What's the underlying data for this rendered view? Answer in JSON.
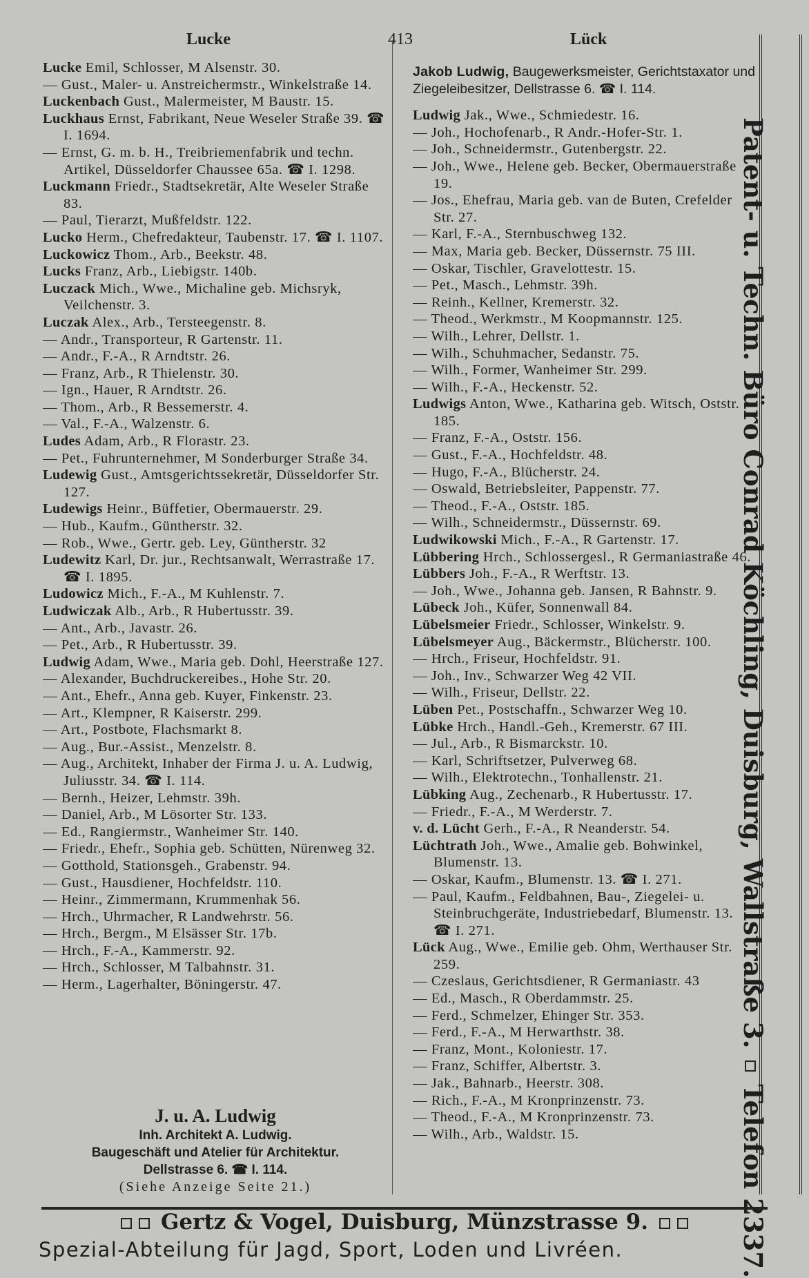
{
  "header": {
    "left": "Lucke",
    "page": "413",
    "right": "Lück"
  },
  "left_column": [
    {
      "name": "Lucke",
      "text": "Emil, Schlosser, M Alsenstr. 30."
    },
    {
      "text": "— Gust., Maler- u. Anstreichermstr., Winkelstraße 14."
    },
    {
      "name": "Luckenbach",
      "text": "Gust., Malermeister, M Baustr. 15."
    },
    {
      "name": "Luckhaus",
      "text": "Ernst, Fabrikant, Neue Weseler Straße 39. ☎ I. 1694."
    },
    {
      "text": "— Ernst, G. m. b. H., Treibriemenfabrik und techn. Artikel, Düsseldorfer Chaussee 65a. ☎ I. 1298."
    },
    {
      "name": "Luckmann",
      "text": "Friedr., Stadtsekretär, Alte Weseler Straße 83."
    },
    {
      "text": "— Paul, Tierarzt, Mußfeldstr. 122."
    },
    {
      "name": "Lucko",
      "text": "Herm., Chefredakteur, Taubenstr. 17. ☎ I. 1107."
    },
    {
      "name": "Luckowicz",
      "text": "Thom., Arb., Beekstr. 48."
    },
    {
      "name": "Lucks",
      "text": "Franz, Arb., Liebigstr. 140b."
    },
    {
      "name": "Luczack",
      "text": "Mich., Wwe., Michaline geb. Michsryk, Veilchenstr. 3."
    },
    {
      "name": "Luczak",
      "text": "Alex., Arb., Tersteegenstr. 8."
    },
    {
      "text": "— Andr., Transporteur, R Gartenstr. 11."
    },
    {
      "text": "— Andr., F.-A., R Arndtstr. 26."
    },
    {
      "text": "— Franz, Arb., R Thielenstr. 30."
    },
    {
      "text": "— Ign., Hauer, R Arndtstr. 26."
    },
    {
      "text": "— Thom., Arb., R Bessemerstr. 4."
    },
    {
      "text": "— Val., F.-A., Walzenstr. 6."
    },
    {
      "name": "Ludes",
      "text": "Adam, Arb., R Florastr. 23."
    },
    {
      "text": "— Pet., Fuhrunternehmer, M Sonderburger Straße 34."
    },
    {
      "name": "Ludewig",
      "text": "Gust., Amtsgerichtssekretär, Düsseldorfer Str. 127."
    },
    {
      "name": "Ludewigs",
      "text": "Heinr., Büffetier, Obermauerstr. 29."
    },
    {
      "text": "— Hub., Kaufm., Güntherstr. 32."
    },
    {
      "text": "— Rob., Wwe., Gertr. geb. Ley, Güntherstr. 32"
    },
    {
      "name": "Ludewitz",
      "text": "Karl, Dr. jur., Rechtsanwalt, Werrastraße 17. ☎ I. 1895."
    },
    {
      "name": "Ludowicz",
      "text": "Mich., F.-A., M Kuhlenstr. 7."
    },
    {
      "name": "Ludwiczak",
      "text": "Alb., Arb., R Hubertusstr. 39."
    },
    {
      "text": "— Ant., Arb., Javastr. 26."
    },
    {
      "text": "— Pet., Arb., R Hubertusstr. 39."
    },
    {
      "name": "Ludwig",
      "text": "Adam, Wwe., Maria geb. Dohl, Heerstraße 127."
    },
    {
      "text": "— Alexander, Buchdruckereibes., Hohe Str. 20."
    },
    {
      "text": "— Ant., Ehefr., Anna geb. Kuyer, Finkenstr. 23."
    },
    {
      "text": "— Art., Klempner, R Kaiserstr. 299."
    },
    {
      "text": "— Art., Postbote, Flachsmarkt 8."
    },
    {
      "text": "— Aug., Bur.-Assist., Menzelstr. 8."
    },
    {
      "text": "— Aug., Architekt, Inhaber der Firma J. u. A. Ludwig, Juliusstr. 34. ☎ I. 114."
    },
    {
      "text": "— Bernh., Heizer, Lehmstr. 39h."
    },
    {
      "text": "— Daniel, Arb., M Lösorter Str. 133."
    },
    {
      "text": "— Ed., Rangiermstr., Wanheimer Str. 140."
    },
    {
      "text": "— Friedr., Ehefr., Sophia geb. Schütten, Nürenweg 32."
    },
    {
      "text": "— Gotthold, Stationsgeh., Grabenstr. 94."
    },
    {
      "text": "— Gust., Hausdiener, Hochfeldstr. 110."
    },
    {
      "text": "— Heinr., Zimmermann, Krummenhak 56."
    },
    {
      "text": "— Hrch., Uhrmacher, R Landwehrstr. 56."
    },
    {
      "text": "— Hrch., Bergm., M Elsässer Str. 17b."
    },
    {
      "text": "— Hrch., F.-A., Kammerstr. 92."
    },
    {
      "text": "— Hrch., Schlosser, M Talbahnstr. 31."
    },
    {
      "text": "— Herm., Lagerhalter, Böningerstr. 47."
    }
  ],
  "advert": {
    "title": "J. u. A. Ludwig",
    "line1": "Inh. Architekt A. Ludwig.",
    "line2": "Baugeschäft und Atelier für Architektur.",
    "line3": "Dellstrasse 6. ☎ I. 114.",
    "line4": "(Siehe Anzeige Seite 21.)"
  },
  "right_column": [
    {
      "name": "Jakob Ludwig,",
      "text": "Baugewerksmeister, Gerichtstaxator und Ziegeleibesitzer, Dellstrasse 6. ☎ I. 114."
    },
    {
      "name": "Ludwig",
      "text": "Jak., Wwe., Schmiedestr. 16."
    },
    {
      "text": "— Joh., Hochofenarb., R Andr.-Hofer-Str. 1."
    },
    {
      "text": "— Joh., Schneidermstr., Gutenbergstr. 22."
    },
    {
      "text": "— Joh., Wwe., Helene geb. Becker, Obermauerstraße 19."
    },
    {
      "text": "— Jos., Ehefrau, Maria geb. van de Buten, Crefelder Str. 27."
    },
    {
      "text": "— Karl, F.-A., Sternbuschweg 132."
    },
    {
      "text": "— Max, Maria geb. Becker, Düssernstr. 75 III."
    },
    {
      "text": "— Oskar, Tischler, Gravelottestr. 15."
    },
    {
      "text": "— Pet., Masch., Lehmstr. 39h."
    },
    {
      "text": "— Reinh., Kellner, Kremerstr. 32."
    },
    {
      "text": "— Theod., Werkmstr., M Koopmannstr. 125."
    },
    {
      "text": "— Wilh., Lehrer, Dellstr. 1."
    },
    {
      "text": "— Wilh., Schuhmacher, Sedanstr. 75."
    },
    {
      "text": "— Wilh., Former, Wanheimer Str. 299."
    },
    {
      "text": "— Wilh., F.-A., Heckenstr. 52."
    },
    {
      "name": "Ludwigs",
      "text": "Anton, Wwe., Katharina geb. Witsch, Oststr. 185."
    },
    {
      "text": "— Franz, F.-A., Oststr. 156."
    },
    {
      "text": "— Gust., F.-A., Hochfeldstr. 48."
    },
    {
      "text": "— Hugo, F.-A., Blücherstr. 24."
    },
    {
      "text": "— Oswald, Betriebsleiter, Pappenstr. 77."
    },
    {
      "text": "— Theod., F.-A., Oststr. 185."
    },
    {
      "text": "— Wilh., Schneidermstr., Düssernstr. 69."
    },
    {
      "name": "Ludwikowski",
      "text": "Mich., F.-A., R Gartenstr. 17."
    },
    {
      "name": "Lübbering",
      "text": "Hrch., Schlossergesl., R Germaniastraße 46."
    },
    {
      "name": "Lübbers",
      "text": "Joh., F.-A., R Werftstr. 13."
    },
    {
      "text": "— Joh., Wwe., Johanna geb. Jansen, R Bahnstr. 9."
    },
    {
      "name": "Lübeck",
      "text": "Joh., Küfer, Sonnenwall 84."
    },
    {
      "name": "Lübelsmeier",
      "text": "Friedr., Schlosser, Winkelstr. 9."
    },
    {
      "name": "Lübelsmeyer",
      "text": "Aug., Bäckermstr., Blücherstr. 100."
    },
    {
      "text": "— Hrch., Friseur, Hochfeldstr. 91."
    },
    {
      "text": "— Joh., Inv., Schwarzer Weg 42 VII."
    },
    {
      "text": "— Wilh., Friseur, Dellstr. 22."
    },
    {
      "name": "Lüben",
      "text": "Pet., Postschaffn., Schwarzer Weg 10."
    },
    {
      "name": "Lübke",
      "text": "Hrch., Handl.-Geh., Kremerstr. 67 III."
    },
    {
      "text": "— Jul., Arb., R Bismarckstr. 10."
    },
    {
      "text": "— Karl, Schriftsetzer, Pulverweg 68."
    },
    {
      "text": "— Wilh., Elektrotechn., Tonhallenstr. 21."
    },
    {
      "name": "Lübking",
      "text": "Aug., Zechenarb., R Hubertusstr. 17."
    },
    {
      "text": "— Friedr., F.-A., M Werderstr. 7."
    },
    {
      "name": "v. d. Lücht",
      "text": "Gerh., F.-A., R Neanderstr. 54."
    },
    {
      "name": "Lüchtrath",
      "text": "Joh., Wwe., Amalie geb. Bohwinkel, Blumenstr. 13."
    },
    {
      "text": "— Oskar, Kaufm., Blumenstr. 13. ☎ I. 271."
    },
    {
      "text": "— Paul, Kaufm., Feldbahnen, Bau-, Ziegelei- u. Steinbruchgeräte, Industriebedarf, Blumenstr. 13. ☎ I. 271."
    },
    {
      "name": "Lück",
      "text": "Aug., Wwe., Emilie geb. Ohm, Werthauser Str. 259."
    },
    {
      "text": "— Czeslaus, Gerichtsdiener, R Germaniastr. 43"
    },
    {
      "text": "— Ed., Masch., R Oberdammstr. 25."
    },
    {
      "text": "— Ferd., Schmelzer, Ehinger Str. 353."
    },
    {
      "text": "— Ferd., F.-A., M Herwarthstr. 38."
    },
    {
      "text": "— Franz, Mont., Koloniestr. 17."
    },
    {
      "text": "— Franz, Schiffer, Albertstr. 3."
    },
    {
      "text": "— Jak., Bahnarb., Heerstr. 308."
    },
    {
      "text": "— Rich., F.-A., M Kronprinzenstr. 73."
    },
    {
      "text": "— Theod., F.-A., M Kronprinzenstr. 73."
    },
    {
      "text": "— Wilh., Arb., Waldstr. 15."
    }
  ],
  "side_banner": {
    "text": "Patent- u. Techn. Büro Conrad Köchling, Duisburg, Wallstraße 3.",
    "phone": "Telefon 2337."
  },
  "footer": {
    "line1": "Gertz & Vogel, Duisburg, Münzstrasse 9.",
    "line2": "Spezial-Abteilung für Jagd, Sport, Loden und Livréen."
  }
}
